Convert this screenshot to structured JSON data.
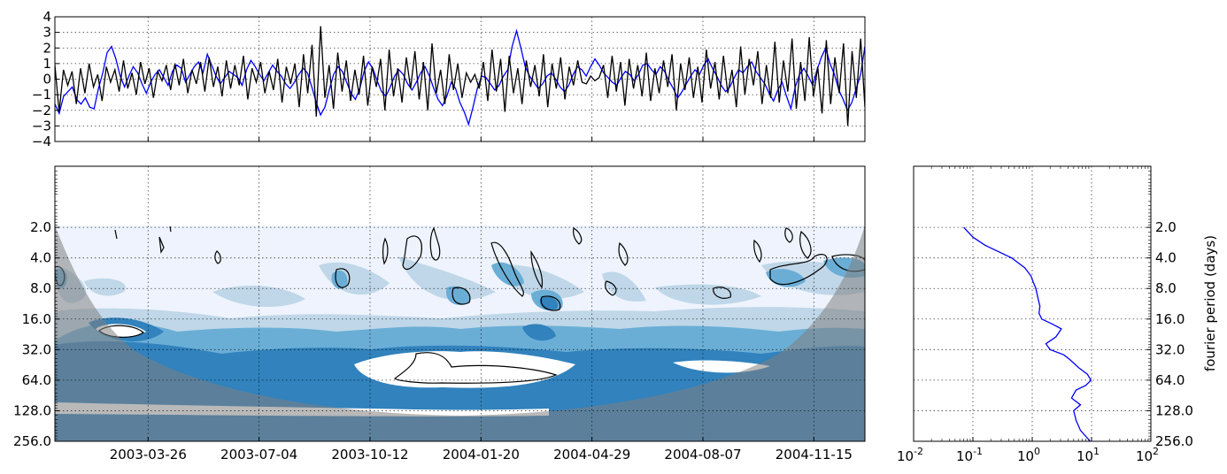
{
  "chart_data": [
    {
      "type": "line",
      "panel": "time-series",
      "ylim": [
        -4,
        4
      ],
      "y_ticks": [
        "4",
        "3",
        "2",
        "1",
        "0",
        "−1",
        "−2",
        "−3",
        "−4"
      ],
      "x_range": [
        "2003-01-01",
        "2004-12-31"
      ],
      "grid": true,
      "series": [
        {
          "color": "#0000ff",
          "values": [
            -1.6,
            -2.2,
            -1.1,
            -0.8,
            -0.5,
            -1.3,
            -1.6,
            -1.2,
            -1.8,
            -1.9,
            -0.6,
            0.4,
            1.7,
            2.1,
            1.3,
            0.2,
            -0.5,
            0.2,
            0.8,
            0.4,
            -0.3,
            -0.9,
            -0.2,
            0.3,
            0.6,
            0.1,
            -0.4,
            0.5,
            0.9,
            0.7,
            -0.2,
            0.3,
            0.8,
            1.1,
            0.4,
            1.6,
            0.9,
            0.2,
            -0.3,
            0.1,
            0.5,
            0.3,
            0.1,
            -0.4,
            0.6,
            1.2,
            0.8,
            0.3,
            -0.1,
            0.4,
            0.9,
            0.5,
            0.2,
            -0.3,
            -0.6,
            -0.2,
            0.3,
            0.7,
            0.4,
            -0.5,
            -1.5,
            -2.3,
            -1.8,
            -0.7,
            0.3,
            0.8,
            0.5,
            -0.2,
            -0.9,
            -1.3,
            -0.6,
            0.5,
            1.1,
            0.7,
            -0.1,
            -0.8,
            -1.1,
            -0.5,
            0.2,
            0.6,
            0.3,
            -0.3,
            -0.7,
            -0.2,
            0.4,
            0.8,
            0.2,
            -0.6,
            -1.3,
            -1.7,
            -1.1,
            -0.2,
            -0.6,
            -1.5,
            -2.1,
            -2.9,
            -1.8,
            -0.6,
            0.2,
            0.1,
            -0.3,
            -0.7,
            -0.4,
            0.2,
            0.6,
            2.1,
            3.1,
            2.0,
            0.8,
            0.2,
            -0.2,
            -0.6,
            -0.3,
            0.2,
            0.4,
            0.0,
            -0.5,
            -0.8,
            -0.4,
            0.3,
            0.8,
            0.6,
            0.2,
            0.8,
            1.3,
            0.9,
            0.4,
            0.1,
            -0.2,
            -0.4,
            0.1,
            0.5,
            0.3,
            -0.1,
            0.3,
            0.9,
            1.0,
            0.6,
            0.3,
            0.8,
            0.5,
            -0.1,
            -0.6,
            -1.2,
            -0.8,
            -0.3,
            0.2,
            0.6,
            0.3,
            0.9,
            1.3,
            0.7,
            0.2,
            -0.4,
            -0.8,
            -0.5,
            0.1,
            0.6,
            0.4,
            0.8,
            1.1,
            0.5,
            0.1,
            -0.3,
            -0.9,
            -1.4,
            -0.7,
            -0.2,
            -1.1,
            -1.9,
            -0.5,
            0.3,
            0.7,
            0.2,
            -0.4,
            0.6,
            1.4,
            2.0,
            1.0,
            0.3,
            -0.7,
            -1.3,
            -2.0,
            -1.5,
            -0.6,
            0.3,
            2.1
          ]
        },
        {
          "color": "#000000",
          "values": [
            0.9,
            -2.1,
            0.6,
            -0.4,
            0.5,
            -1.6,
            0.7,
            -0.9,
            1.0,
            -0.5,
            0.3,
            -1.4,
            0.8,
            -0.2,
            0.6,
            -0.8,
            1.2,
            -0.6,
            0.4,
            -1.0,
            1.1,
            -0.3,
            0.7,
            -1.2,
            0.5,
            -0.1,
            0.9,
            -0.7,
            1.0,
            -0.4,
            1.3,
            -0.9,
            0.6,
            -0.3,
            1.1,
            -0.8,
            1.4,
            -0.5,
            0.8,
            -1.1,
            1.2,
            -0.6,
            0.9,
            -0.4,
            1.5,
            -1.3,
            0.7,
            -0.2,
            1.1,
            -0.9,
            0.5,
            -0.7,
            1.3,
            -1.5,
            0.8,
            -0.3,
            1.0,
            -1.8,
            1.6,
            -0.9,
            2.2,
            -2.4,
            3.4,
            -1.2,
            0.9,
            -1.9,
            1.7,
            -0.8,
            1.2,
            -1.4,
            0.6,
            -1.0,
            1.5,
            -1.7,
            0.8,
            -0.5,
            1.3,
            -2.0,
            1.9,
            -1.1,
            0.7,
            -1.5,
            1.4,
            -0.6,
            1.8,
            -1.3,
            1.1,
            -2.0,
            2.3,
            -0.9,
            0.6,
            -1.6,
            1.6,
            -0.7,
            1.0,
            -1.2,
            0.4,
            -0.2,
            0.3,
            -0.6,
            1.1,
            -1.4,
            1.9,
            -0.8,
            1.3,
            -2.1,
            1.5,
            -0.9,
            0.7,
            -1.6,
            1.2,
            -0.5,
            0.9,
            -1.1,
            1.6,
            -1.8,
            1.0,
            -0.6,
            1.4,
            -1.3,
            0.8,
            -0.4,
            1.2,
            -0.2,
            -0.3,
            0.2,
            -0.1,
            0.1,
            0.9,
            -1.2,
            1.5,
            -0.8,
            1.1,
            -1.7,
            1.3,
            -0.6,
            0.9,
            -1.1,
            1.7,
            -1.4,
            0.7,
            -0.9,
            1.2,
            -0.5,
            1.6,
            -2.0,
            1.0,
            -0.7,
            1.4,
            -1.2,
            0.8,
            -1.5,
            1.9,
            -0.6,
            1.1,
            -1.3,
            1.5,
            -0.9,
            0.6,
            -1.8,
            2.1,
            -1.0,
            1.3,
            -0.4,
            1.8,
            -1.6,
            0.9,
            -1.2,
            2.4,
            -1.5,
            1.2,
            -0.8,
            2.6,
            -1.9,
            1.1,
            -1.4,
            2.7,
            -1.1,
            0.8,
            -2.2,
            2.5,
            -1.6,
            1.4,
            -0.9,
            2.3,
            -3.0,
            1.8,
            -1.2,
            2.6,
            -1.8
          ]
        }
      ]
    },
    {
      "type": "heatmap",
      "panel": "wavelet-power-spectrum",
      "x_range": [
        "2003-01-01",
        "2004-12-31"
      ],
      "x_ticks": [
        "2003-03-26",
        "2003-07-04",
        "2003-10-12",
        "2004-01-20",
        "2004-04-29",
        "2004-08-07",
        "2004-11-15"
      ],
      "y_scale": "log2",
      "y_ticks": [
        "2.0",
        "4.0",
        "8.0",
        "16.0",
        "32.0",
        "64.0",
        "128.0",
        "256.0"
      ],
      "ylim": [
        0.5,
        256
      ],
      "grid": true,
      "colors": [
        "#eef3fd",
        "#bfd7e8",
        "#6aaed6",
        "#3182bd",
        "#ffffff"
      ],
      "cone_of_influence_color": "#808080",
      "significance_contour_color": "#000000"
    },
    {
      "type": "line",
      "panel": "global-wavelet-spectrum",
      "x_scale": "log",
      "xlim": [
        0.01,
        100
      ],
      "x_ticks": [
        "10",
        "10",
        "10",
        "10",
        "10"
      ],
      "x_tick_exponents": [
        "-2",
        "-1",
        "0",
        "1",
        "2"
      ],
      "y_scale": "log2",
      "y_ticks": [
        "2.0",
        "4.0",
        "8.0",
        "16.0",
        "32.0",
        "64.0",
        "128.0",
        "256.0"
      ],
      "ylabel": "fourier period (days)",
      "grid": true,
      "series": [
        {
          "color": "#0000ff",
          "period": [
            2,
            2.5,
            3,
            4,
            5,
            6,
            7,
            8,
            10,
            12,
            14,
            16,
            18,
            20,
            24,
            28,
            32,
            36,
            40,
            48,
            56,
            64,
            72,
            80,
            96,
            112,
            128,
            160,
            200,
            256
          ],
          "power": [
            0.07,
            0.1,
            0.16,
            0.45,
            0.75,
            0.95,
            1.05,
            1.15,
            1.25,
            1.35,
            1.3,
            1.45,
            2.2,
            3.1,
            2.5,
            1.7,
            2.0,
            3.4,
            4.3,
            6.0,
            8.5,
            9.8,
            8.0,
            5.5,
            4.6,
            6.5,
            5.0,
            5.5,
            6.5,
            9.5
          ]
        }
      ]
    }
  ]
}
